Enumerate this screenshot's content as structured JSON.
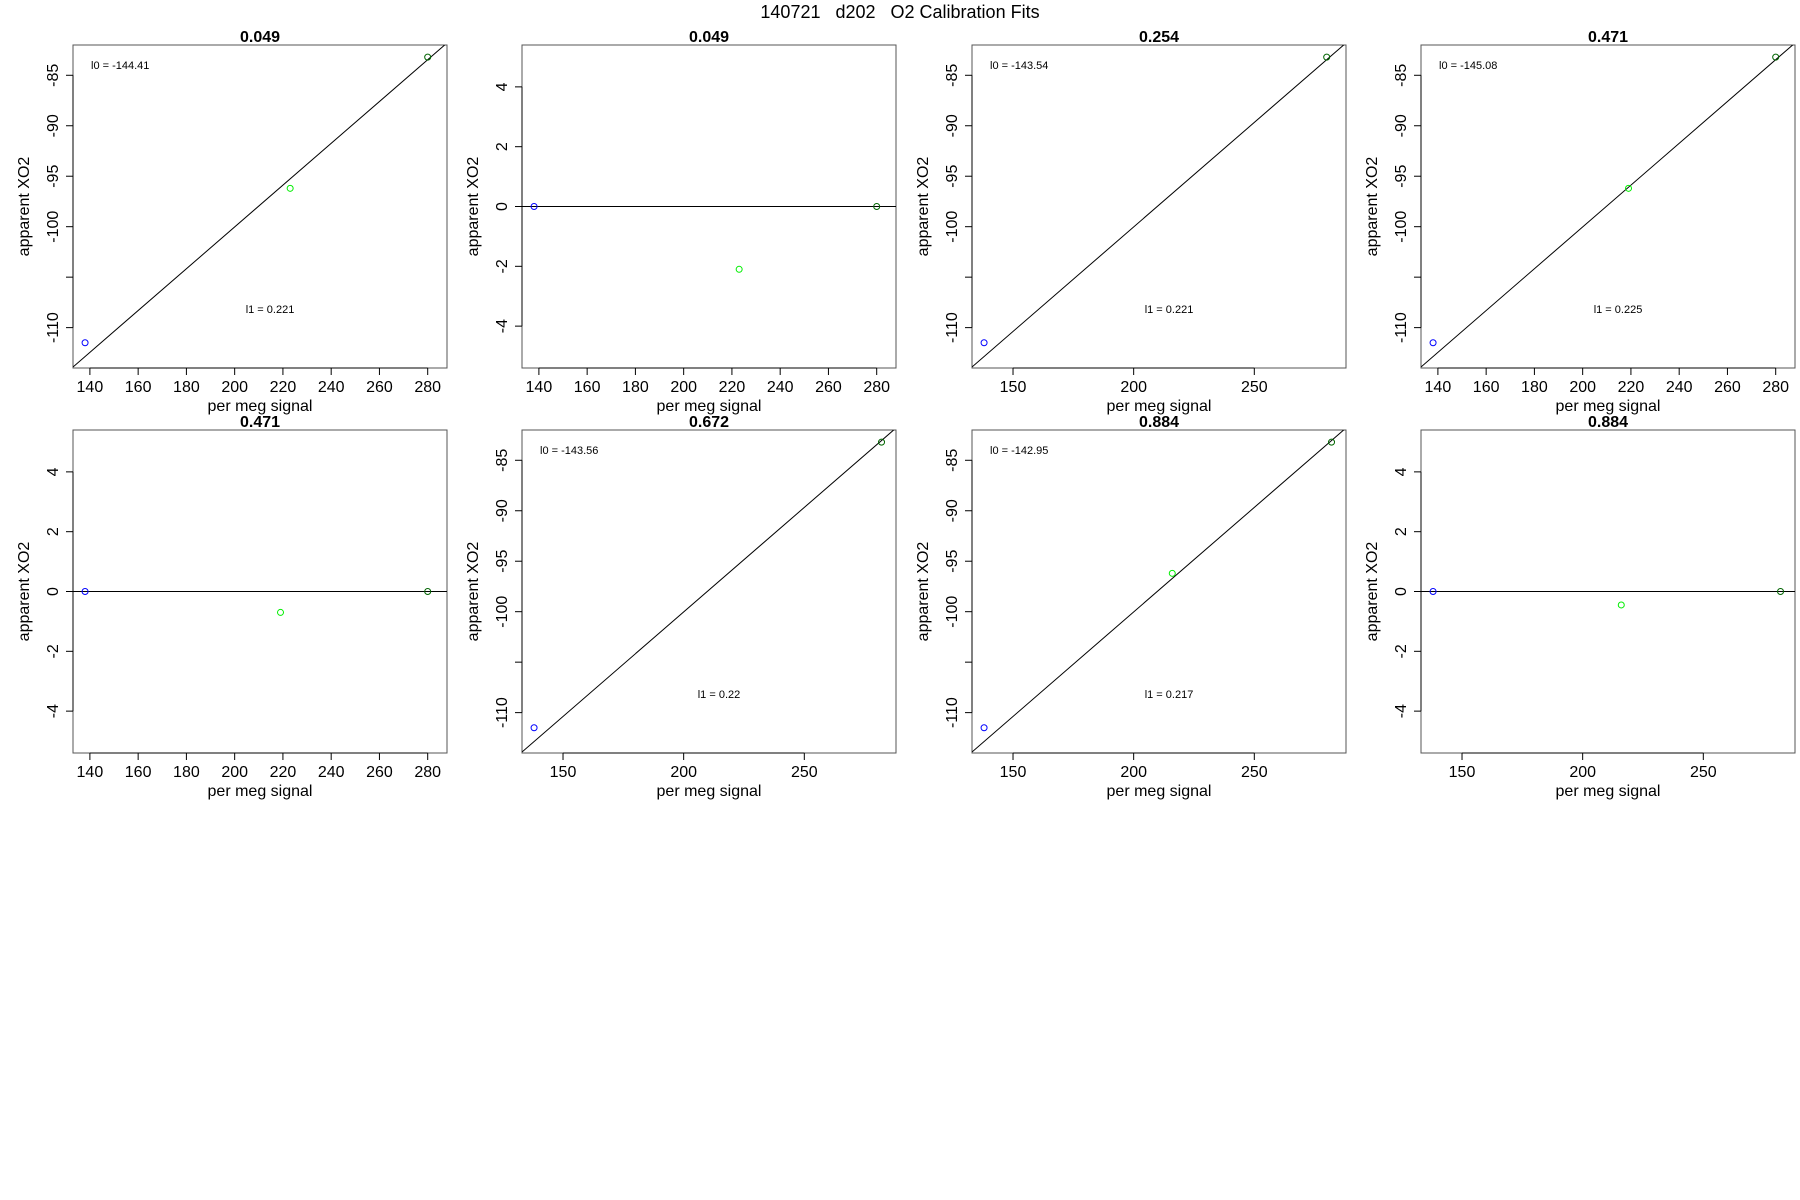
{
  "title": "140721   d202   O2 Calibration Fits",
  "chart_data": [
    {
      "type": "scatter",
      "title": "0.049",
      "xlabel": "per meg signal",
      "ylabel": "apparent XO2",
      "xlim": [
        133,
        288
      ],
      "ylim": [
        -114,
        -82
      ],
      "xticks": [
        140,
        160,
        180,
        200,
        220,
        240,
        260,
        280
      ],
      "yticks": [
        -110,
        -100,
        -95,
        -90,
        -85
      ],
      "yminor": [
        -105
      ],
      "points": [
        {
          "x": 138,
          "y": -111.5,
          "color": "#0000ff"
        },
        {
          "x": 223,
          "y": -96.2,
          "color": "#00ee00"
        },
        {
          "x": 280,
          "y": -83.2,
          "color": "#006400"
        }
      ],
      "fit_line": [
        [
          133,
          -113.9
        ],
        [
          288,
          -81.8
        ]
      ],
      "annotations": [
        {
          "text": "l0 =  -144.41",
          "pos": "top-left"
        },
        {
          "text": "l1 =  0.221",
          "pos": "middle-center"
        }
      ]
    },
    {
      "type": "scatter",
      "title": "0.049",
      "xlabel": "per meg signal",
      "ylabel": "apparent XO2",
      "xlim": [
        133,
        288
      ],
      "ylim": [
        -5.4,
        5.4
      ],
      "xticks": [
        140,
        160,
        180,
        200,
        220,
        240,
        260,
        280
      ],
      "yticks": [
        -4,
        -2,
        0,
        2,
        4
      ],
      "yminor": [],
      "points": [
        {
          "x": 138,
          "y": 0,
          "color": "#0000ff"
        },
        {
          "x": 223,
          "y": -2.1,
          "color": "#00ee00"
        },
        {
          "x": 280,
          "y": 0,
          "color": "#006400"
        }
      ],
      "fit_line": [
        [
          133,
          0
        ],
        [
          288,
          0
        ]
      ],
      "annotations": []
    },
    {
      "type": "scatter",
      "title": "0.254",
      "xlabel": "per meg signal",
      "ylabel": "apparent XO2",
      "xlim": [
        133,
        288
      ],
      "ylim": [
        -114,
        -82
      ],
      "xticks": [
        150,
        200,
        250
      ],
      "yticks": [
        -110,
        -100,
        -95,
        -90,
        -85
      ],
      "yminor": [
        -105
      ],
      "points": [
        {
          "x": 138,
          "y": -111.5,
          "color": "#0000ff"
        },
        {
          "x": 280,
          "y": -83.2,
          "color": "#006400"
        }
      ],
      "fit_line": [
        [
          133,
          -113.9
        ],
        [
          288,
          -81.8
        ]
      ],
      "annotations": [
        {
          "text": "l0 =  -143.54",
          "pos": "top-left"
        },
        {
          "text": "l1 =  0.221",
          "pos": "middle-center"
        }
      ]
    },
    {
      "type": "scatter",
      "title": "0.471",
      "xlabel": "per meg signal",
      "ylabel": "apparent XO2",
      "xlim": [
        133,
        288
      ],
      "ylim": [
        -114,
        -82
      ],
      "xticks": [
        140,
        160,
        180,
        200,
        220,
        240,
        260,
        280
      ],
      "yticks": [
        -110,
        -100,
        -95,
        -90,
        -85
      ],
      "yminor": [
        -105
      ],
      "points": [
        {
          "x": 138,
          "y": -111.5,
          "color": "#0000ff"
        },
        {
          "x": 219,
          "y": -96.2,
          "color": "#00ee00"
        },
        {
          "x": 280,
          "y": -83.2,
          "color": "#006400"
        }
      ],
      "fit_line": [
        [
          133,
          -113.9
        ],
        [
          288,
          -81.8
        ]
      ],
      "annotations": [
        {
          "text": "l0 =  -145.08",
          "pos": "top-left"
        },
        {
          "text": "l1 =  0.225",
          "pos": "middle-center"
        }
      ]
    },
    {
      "type": "scatter",
      "title": "0.471",
      "xlabel": "per meg signal",
      "ylabel": "apparent XO2",
      "xlim": [
        133,
        288
      ],
      "ylim": [
        -5.4,
        5.4
      ],
      "xticks": [
        140,
        160,
        180,
        200,
        220,
        240,
        260,
        280
      ],
      "yticks": [
        -4,
        -2,
        0,
        2,
        4
      ],
      "yminor": [],
      "points": [
        {
          "x": 138,
          "y": 0,
          "color": "#0000ff"
        },
        {
          "x": 219,
          "y": -0.7,
          "color": "#00ee00"
        },
        {
          "x": 280,
          "y": 0,
          "color": "#006400"
        }
      ],
      "fit_line": [
        [
          133,
          0
        ],
        [
          288,
          0
        ]
      ],
      "annotations": []
    },
    {
      "type": "scatter",
      "title": "0.672",
      "xlabel": "per meg signal",
      "ylabel": "apparent XO2",
      "xlim": [
        133,
        288
      ],
      "ylim": [
        -114,
        -82
      ],
      "xticks": [
        150,
        200,
        250
      ],
      "yticks": [
        -110,
        -100,
        -95,
        -90,
        -85
      ],
      "yminor": [
        -105
      ],
      "points": [
        {
          "x": 138,
          "y": -111.5,
          "color": "#0000ff"
        },
        {
          "x": 282,
          "y": -83.2,
          "color": "#006400"
        }
      ],
      "fit_line": [
        [
          133,
          -113.9
        ],
        [
          288,
          -81.8
        ]
      ],
      "annotations": [
        {
          "text": "l0 =  -143.56",
          "pos": "top-left"
        },
        {
          "text": "l1 =  0.22",
          "pos": "middle-center"
        }
      ]
    },
    {
      "type": "scatter",
      "title": "0.884",
      "xlabel": "per meg signal",
      "ylabel": "apparent XO2",
      "xlim": [
        133,
        288
      ],
      "ylim": [
        -114,
        -82
      ],
      "xticks": [
        150,
        200,
        250
      ],
      "yticks": [
        -110,
        -100,
        -95,
        -90,
        -85
      ],
      "yminor": [
        -105
      ],
      "points": [
        {
          "x": 138,
          "y": -111.5,
          "color": "#0000ff"
        },
        {
          "x": 216,
          "y": -96.2,
          "color": "#00ee00"
        },
        {
          "x": 282,
          "y": -83.2,
          "color": "#006400"
        }
      ],
      "fit_line": [
        [
          133,
          -113.9
        ],
        [
          288,
          -81.8
        ]
      ],
      "annotations": [
        {
          "text": "l0 =  -142.95",
          "pos": "top-left"
        },
        {
          "text": "l1 =  0.217",
          "pos": "middle-center"
        }
      ]
    },
    {
      "type": "scatter",
      "title": "0.884",
      "xlabel": "per meg signal",
      "ylabel": "apparent XO2",
      "xlim": [
        133,
        288
      ],
      "ylim": [
        -5.4,
        5.4
      ],
      "xticks": [
        150,
        200,
        250
      ],
      "yticks": [
        -4,
        -2,
        0,
        2,
        4
      ],
      "yminor": [],
      "points": [
        {
          "x": 138,
          "y": 0,
          "color": "#0000ff"
        },
        {
          "x": 216,
          "y": -0.45,
          "color": "#00ee00"
        },
        {
          "x": 282,
          "y": 0,
          "color": "#006400"
        }
      ],
      "fit_line": [
        [
          133,
          0
        ],
        [
          288,
          0
        ]
      ],
      "annotations": []
    }
  ]
}
